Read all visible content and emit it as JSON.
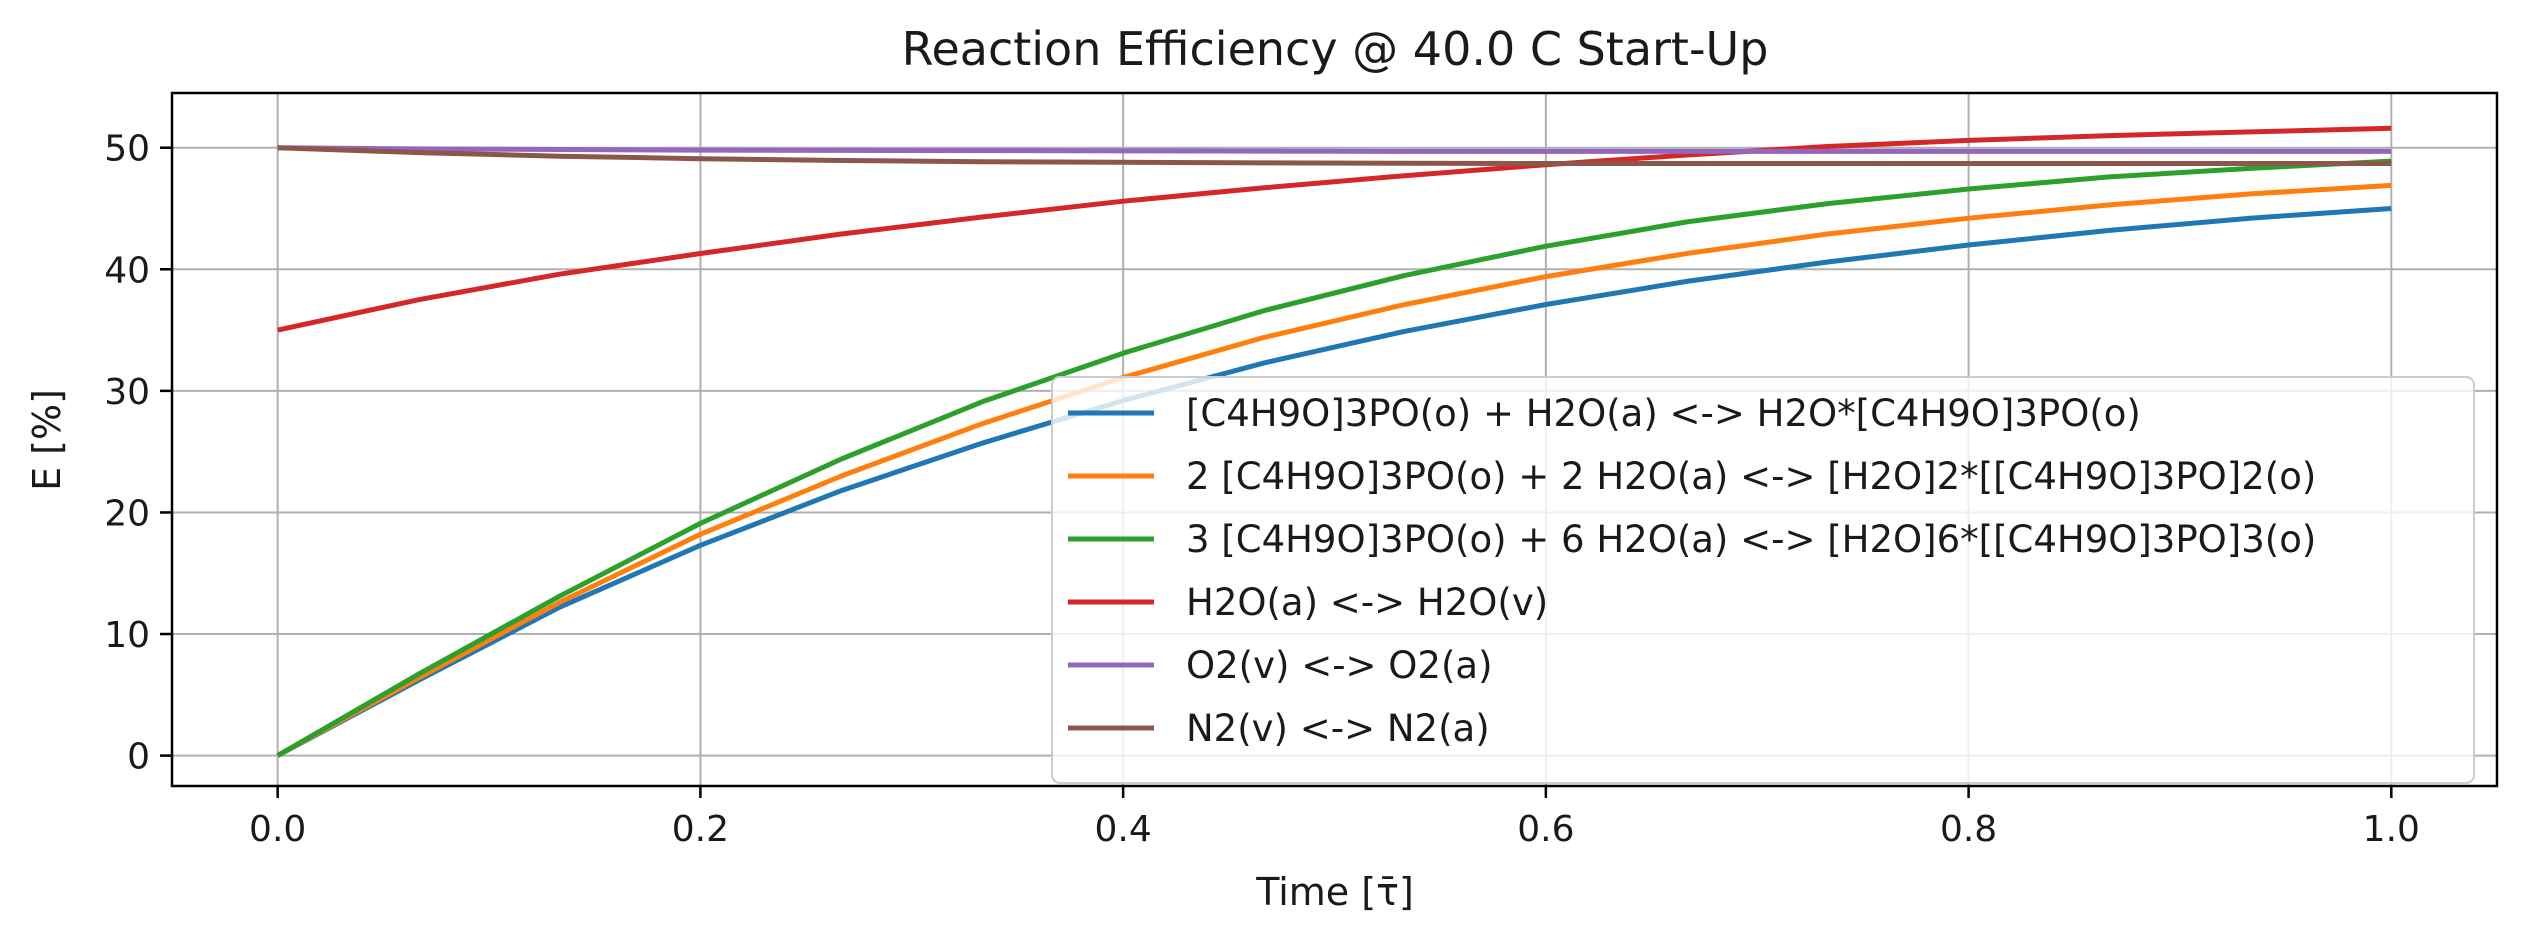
{
  "chart_data": {
    "type": "line",
    "title": "Reaction Efficiency @ 40.0 C Start-Up",
    "xlabel": "Time [τ̄]",
    "ylabel": "E [%]",
    "xlim": [
      -0.05,
      1.05
    ],
    "ylim": [
      -2.5,
      54.5
    ],
    "xticks": [
      "0.0",
      "0.2",
      "0.4",
      "0.6",
      "0.8",
      "1.0"
    ],
    "yticks": [
      "0",
      "10",
      "20",
      "30",
      "40",
      "50"
    ],
    "grid": true,
    "legend_position": "lower-right",
    "x": [
      0.0,
      0.0667,
      0.1333,
      0.2,
      0.2667,
      0.3333,
      0.4,
      0.4667,
      0.5333,
      0.6,
      0.6667,
      0.7333,
      0.8,
      0.8667,
      0.9333,
      1.0
    ],
    "series": [
      {
        "name": "[C4H9O]3PO(o) + H2O(a) <-> H2O*[C4H9O]3PO(o)",
        "color": "#1f77b4",
        "values": [
          0,
          6.2,
          12.2,
          17.3,
          21.8,
          25.7,
          29.2,
          32.3,
          34.9,
          37.1,
          39.0,
          40.6,
          42.0,
          43.2,
          44.2,
          45.0
        ]
      },
      {
        "name": "2 [C4H9O]3PO(o) + 2 H2O(a) <-> [H2O]2*[[C4H9O]3PO]2(o)",
        "color": "#ff7f0e",
        "values": [
          0,
          6.4,
          12.6,
          18.2,
          23.0,
          27.3,
          31.1,
          34.4,
          37.1,
          39.4,
          41.3,
          42.9,
          44.2,
          45.3,
          46.2,
          46.9
        ]
      },
      {
        "name": "3 [C4H9O]3PO(o) + 6 H2O(a) <-> [H2O]6*[[C4H9O]3PO]3(o)",
        "color": "#2ca02c",
        "values": [
          0,
          6.7,
          13.1,
          19.1,
          24.4,
          29.1,
          33.1,
          36.6,
          39.5,
          41.9,
          43.9,
          45.4,
          46.6,
          47.6,
          48.3,
          48.9
        ]
      },
      {
        "name": "H2O(a) <-> H2O(v)",
        "color": "#d62728",
        "values": [
          35.0,
          37.5,
          39.6,
          41.3,
          42.9,
          44.3,
          45.6,
          46.7,
          47.7,
          48.6,
          49.4,
          50.1,
          50.6,
          51.0,
          51.3,
          51.6
        ]
      },
      {
        "name": "O2(v) <-> O2(a)",
        "color": "#9467bd",
        "values": [
          50.0,
          49.9,
          49.85,
          49.8,
          49.78,
          49.76,
          49.74,
          49.72,
          49.7,
          49.7,
          49.7,
          49.7,
          49.7,
          49.7,
          49.7,
          49.7
        ]
      },
      {
        "name": "N2(v) <-> N2(a)",
        "color": "#8c564b",
        "values": [
          50.0,
          49.6,
          49.3,
          49.1,
          48.95,
          48.85,
          48.8,
          48.75,
          48.72,
          48.7,
          48.7,
          48.7,
          48.7,
          48.7,
          48.7,
          48.7
        ]
      }
    ]
  }
}
